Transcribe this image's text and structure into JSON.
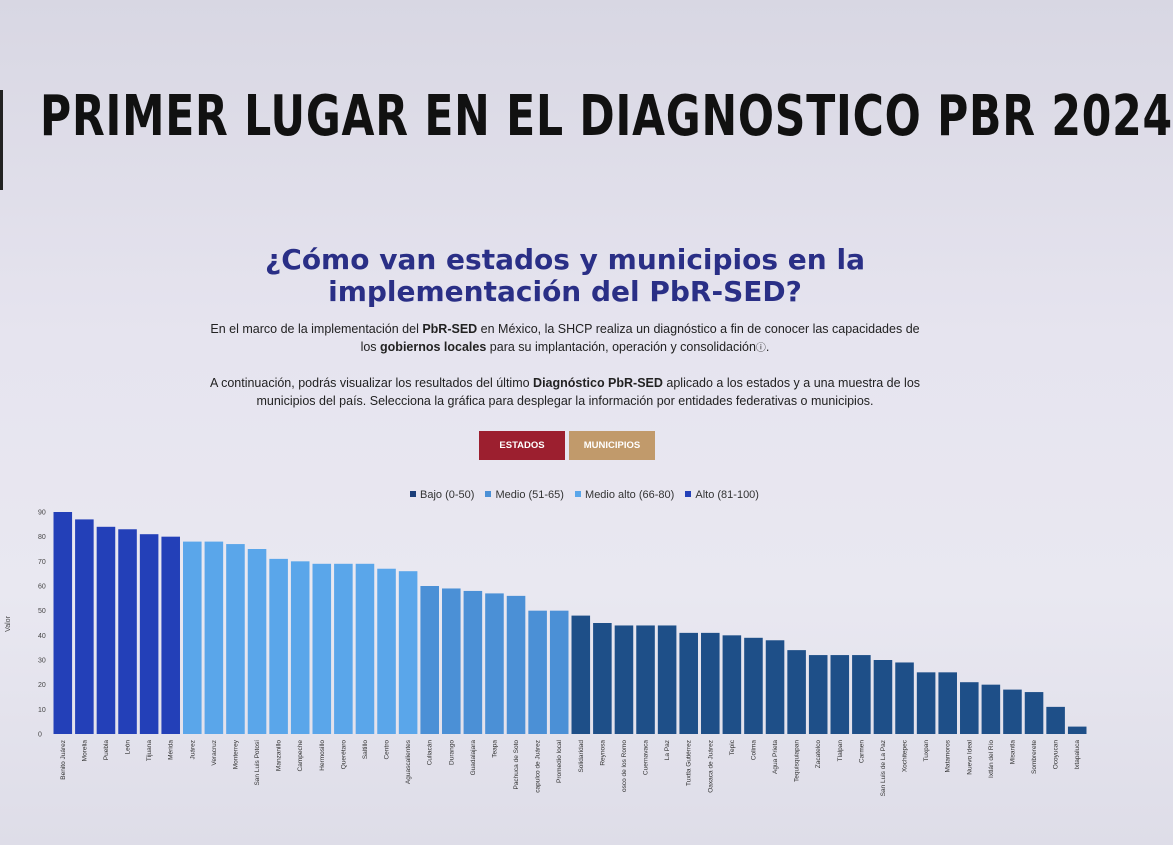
{
  "slide": {
    "headline": "PRIMER LUGAR EN EL DIAGNOSTICO PBR 2024",
    "subtitle_line1": "¿Cómo van estados y municipios en la",
    "subtitle_line2": "implementación del PbR-SED?",
    "paragraph1": {
      "t1": "En el marco de la implementación del ",
      "b1": "PbR-SED",
      "t2": " en México, la SHCP realiza un diagnóstico a fin de conocer las capacidades de los ",
      "b2": "gobiernos locales",
      "t3": " para su implantación, operación y consolidación",
      "icon": "info-icon"
    },
    "paragraph2": {
      "t1": "A continuación, podrás visualizar los resultados del último ",
      "b1": "Diagnóstico PbR-SED",
      "t2": " aplicado a los estados y a una muestra de los municipios del país. Selecciona la gráfica para desplegar la información por entidades federativas o municipios."
    },
    "buttons": {
      "estados": "ESTADOS",
      "municipios": "MUNICIPIOS"
    }
  },
  "colors": {
    "alto": "#2340b8",
    "medio_alto": "#5aa6ea",
    "medio": "#2d6aa6",
    "bajo": "#1c3f7a",
    "headline": "#111111",
    "subtitle": "#2a2f86",
    "estados_button": "#9c1f2f",
    "municipios_button": "#c19a6b"
  },
  "chart_data": {
    "type": "bar",
    "ylabel": "Valor",
    "ylim": [
      0,
      90
    ],
    "yticks": [
      0,
      10,
      20,
      30,
      40,
      50,
      60,
      70,
      80,
      90
    ],
    "grid": false,
    "legend_position": "top-center",
    "legend": [
      {
        "label": "Bajo (0-50)",
        "color": "#1c3f7a"
      },
      {
        "label": "Medio (51-65)",
        "color": "#2d6aa6"
      },
      {
        "label": "Medio alto (66-80)",
        "color": "#5aa6ea"
      },
      {
        "label": "Alto (81-100)",
        "color": "#2340b8"
      }
    ],
    "categories": [
      "Benito Juárez",
      "Morelia",
      "Puebla",
      "León",
      "Tijuana",
      "Mérida",
      "Juárez",
      "Veracruz",
      "Monterrey",
      "San Luis Potosí",
      "Manzanillo",
      "Campeche",
      "Hermosillo",
      "Querétaro",
      "Saltillo",
      "Centro",
      "Aguascalientes",
      "Culiacán",
      "Durango",
      "Guadalajara",
      "Teapa",
      "Pachuca de Soto",
      "capulco de Juárez",
      "Promedio local",
      "Solidaridad",
      "Reynosa",
      "osco de los Romo",
      "Cuernavaca",
      "La Paz",
      "Tuxtla Gutiérrez",
      "Oaxaca de Juárez",
      "Tepic",
      "Colima",
      "Agua Prieta",
      "Tequisquiapan",
      "Zacatelco",
      "Tlalpan",
      "Carmen",
      "San Luis de La Paz",
      "Xochitepec",
      "Tuxpan",
      "Matamoros",
      "Nuevo Ideal",
      "Ixtlán del Río",
      "Misantla",
      "Sombrerete",
      "Ocoyucan",
      "Ixtapaluca"
    ],
    "values": [
      90,
      87,
      84,
      83,
      81,
      80,
      78,
      78,
      77,
      75,
      71,
      70,
      69,
      69,
      69,
      67,
      66,
      60,
      59,
      58,
      57,
      56,
      50,
      50,
      48,
      45,
      44,
      44,
      44,
      41,
      41,
      40,
      39,
      38,
      34,
      32,
      32,
      32,
      30,
      29,
      25,
      25,
      21,
      20,
      18,
      17,
      11,
      3
    ],
    "bar_colors": [
      "#2340b8",
      "#2340b8",
      "#2340b8",
      "#2340b8",
      "#2340b8",
      "#2340b8",
      "#5aa6ea",
      "#5aa6ea",
      "#5aa6ea",
      "#5aa6ea",
      "#5aa6ea",
      "#5aa6ea",
      "#5aa6ea",
      "#5aa6ea",
      "#5aa6ea",
      "#5aa6ea",
      "#5aa6ea",
      "#4b90d6",
      "#4b90d6",
      "#4b90d6",
      "#4b90d6",
      "#4b90d6",
      "#4b90d6",
      "#4b90d6",
      "#1e4f88",
      "#1e4f88",
      "#1e4f88",
      "#1e4f88",
      "#1e4f88",
      "#1e4f88",
      "#1e4f88",
      "#1e4f88",
      "#1e4f88",
      "#1e4f88",
      "#1e4f88",
      "#1e4f88",
      "#1e4f88",
      "#1e4f88",
      "#1e4f88",
      "#1e4f88",
      "#1e4f88",
      "#1e4f88",
      "#1e4f88",
      "#1e4f88",
      "#1e4f88",
      "#1e4f88",
      "#1e4f88",
      "#1e4f88"
    ]
  }
}
